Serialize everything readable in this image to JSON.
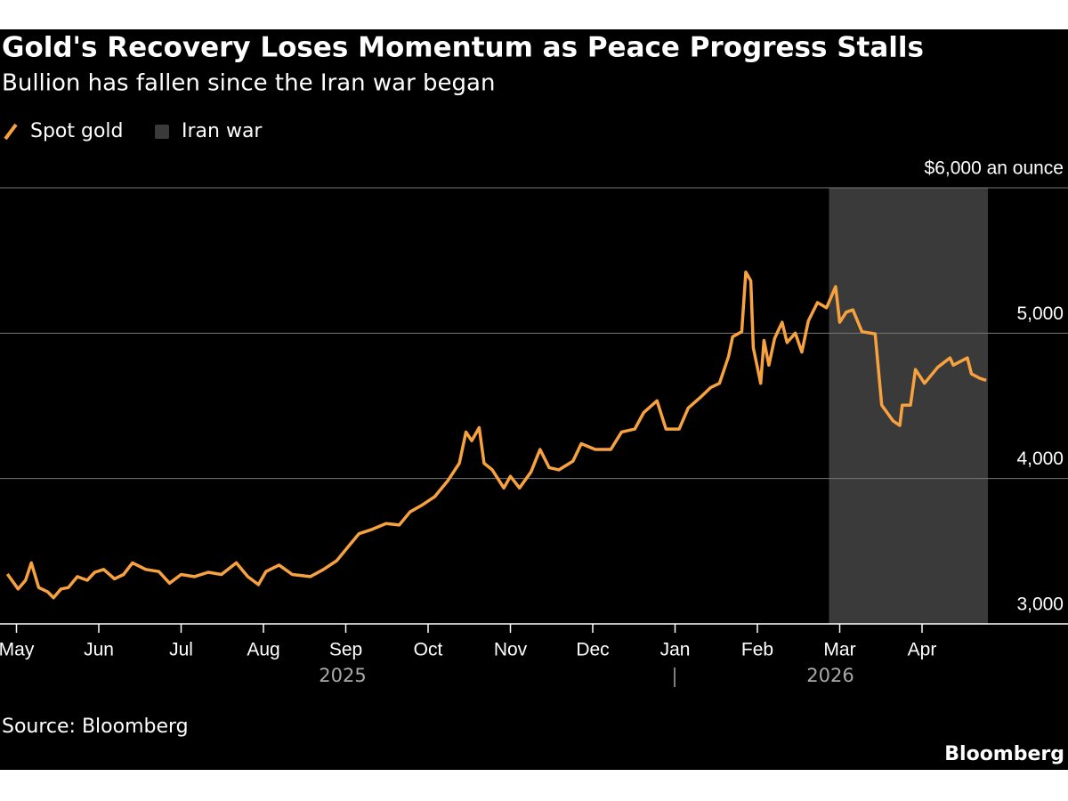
{
  "chart_data": {
    "type": "line",
    "title": "Gold's Recovery Loses Momentum as Peace Progress Stalls",
    "subtitle": "Bullion has fallen since the Iran war began",
    "source": "Source: Bloomberg",
    "brand": "Bloomberg",
    "x_groups": [
      "2025",
      "2026"
    ],
    "xlim": [
      -0.2,
      11.8
    ],
    "xticks": [
      {
        "value": 0,
        "label": "May"
      },
      {
        "value": 1,
        "label": "Jun"
      },
      {
        "value": 2,
        "label": "Jul"
      },
      {
        "value": 3,
        "label": "Aug"
      },
      {
        "value": 4,
        "label": "Sep"
      },
      {
        "value": 5,
        "label": "Oct"
      },
      {
        "value": 6,
        "label": "Nov"
      },
      {
        "value": 7,
        "label": "Dec"
      },
      {
        "value": 8,
        "label": "Jan"
      },
      {
        "value": 9,
        "label": "Feb"
      },
      {
        "value": 10,
        "label": "Mar"
      },
      {
        "value": 11,
        "label": "Apr"
      }
    ],
    "ylim": [
      3000,
      6000
    ],
    "yticks": [
      {
        "value": 3000,
        "label": "3,000"
      },
      {
        "value": 4000,
        "label": "4,000"
      },
      {
        "value": 5000,
        "label": "5,000"
      },
      {
        "value": 6000,
        "label": "$6,000 an ounce"
      }
    ],
    "grid": true,
    "shaded": {
      "name": "Iran war",
      "color": "#3a3a3a",
      "x": [
        9.87,
        11.8
      ]
    },
    "series": [
      {
        "name": "Spot gold",
        "color": "#f7a23e",
        "x": [
          -0.11,
          0.02,
          0.11,
          0.18,
          0.27,
          0.38,
          0.45,
          0.54,
          0.63,
          0.74,
          0.86,
          0.95,
          1.06,
          1.19,
          1.3,
          1.41,
          1.57,
          1.73,
          1.86,
          2.0,
          2.16,
          2.33,
          2.49,
          2.67,
          2.81,
          2.94,
          3.03,
          3.19,
          3.35,
          3.57,
          3.73,
          3.89,
          4.05,
          4.16,
          4.32,
          4.49,
          4.65,
          4.78,
          4.92,
          5.08,
          5.24,
          5.38,
          5.46,
          5.53,
          5.62,
          5.68,
          5.78,
          5.92,
          6.0,
          6.11,
          6.25,
          6.36,
          6.47,
          6.59,
          6.76,
          6.86,
          7.03,
          7.22,
          7.35,
          7.51,
          7.62,
          7.78,
          7.89,
          8.05,
          8.16,
          8.32,
          8.43,
          8.54,
          8.65,
          8.7,
          8.81,
          8.86,
          8.92,
          8.95,
          9.04,
          9.08,
          9.14,
          9.21,
          9.3,
          9.36,
          9.46,
          9.54,
          9.62,
          9.73,
          9.84,
          9.95,
          10.0,
          10.08,
          10.16,
          10.27,
          10.43,
          10.51,
          10.65,
          10.73,
          10.76,
          10.86,
          10.92,
          11.03,
          11.19,
          11.34,
          11.38,
          11.55,
          11.6,
          11.7,
          11.78
        ],
        "values": [
          3343,
          3240,
          3300,
          3420,
          3250,
          3220,
          3180,
          3240,
          3250,
          3325,
          3300,
          3355,
          3375,
          3310,
          3340,
          3420,
          3375,
          3360,
          3280,
          3340,
          3325,
          3355,
          3340,
          3420,
          3325,
          3270,
          3360,
          3405,
          3340,
          3325,
          3375,
          3435,
          3545,
          3620,
          3650,
          3690,
          3680,
          3770,
          3815,
          3875,
          3985,
          4105,
          4320,
          4260,
          4350,
          4105,
          4060,
          3935,
          4015,
          3935,
          4045,
          4200,
          4075,
          4060,
          4120,
          4240,
          4200,
          4200,
          4320,
          4340,
          4455,
          4535,
          4340,
          4340,
          4485,
          4565,
          4625,
          4655,
          4840,
          4975,
          5010,
          5420,
          5360,
          4900,
          4655,
          4950,
          4780,
          4965,
          5075,
          4935,
          5000,
          4870,
          5085,
          5210,
          5175,
          5320,
          5075,
          5145,
          5160,
          5010,
          4995,
          4505,
          4395,
          4365,
          4505,
          4505,
          4750,
          4655,
          4765,
          4830,
          4780,
          4830,
          4720,
          4690,
          4675
        ]
      }
    ]
  }
}
